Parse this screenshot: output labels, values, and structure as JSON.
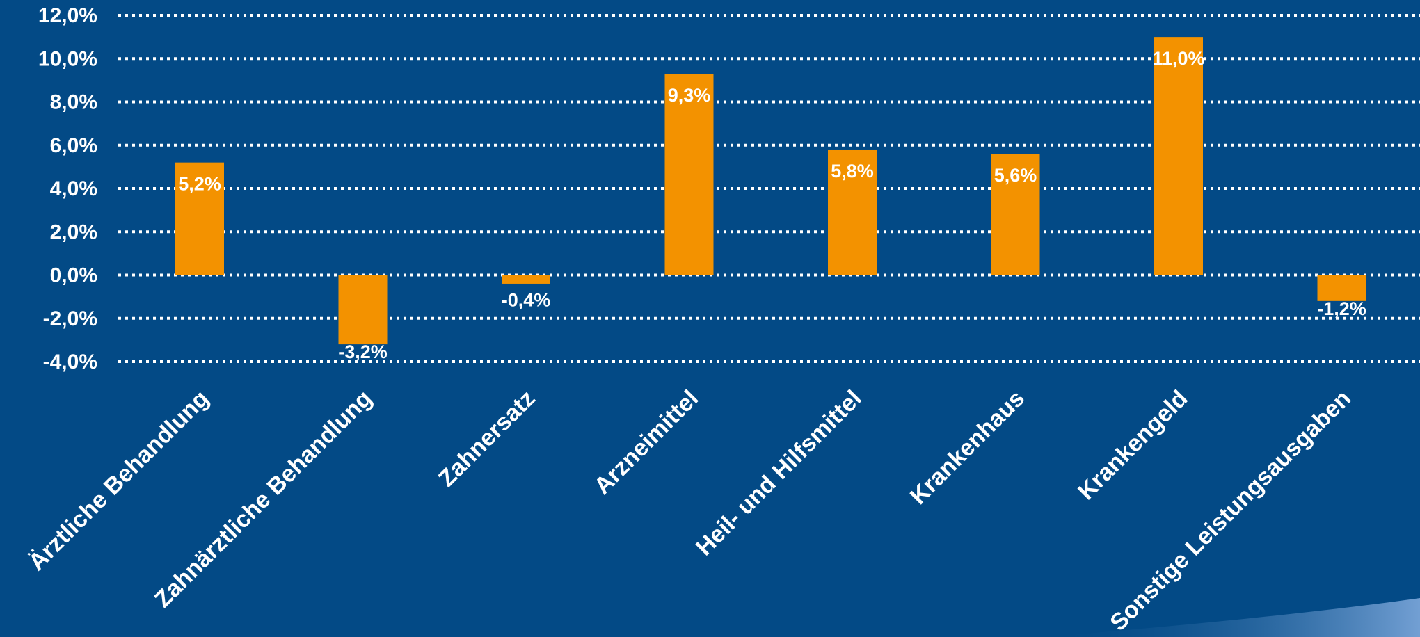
{
  "colors": {
    "background": "#034a86",
    "bar": "#f39200",
    "grid": "#ffffff",
    "text": "#ffffff",
    "swoosh": "#5f8fcf"
  },
  "chart_data": {
    "type": "bar",
    "title": "",
    "xlabel": "",
    "ylabel": "",
    "ylim": [
      -4,
      12
    ],
    "yticks": [
      12,
      10,
      8,
      6,
      4,
      2,
      0,
      -2,
      -4
    ],
    "ytick_labels": [
      "12,0%",
      "10,0%",
      "8,0%",
      "6,0%",
      "4,0%",
      "2,0%",
      "0,0%",
      "-2,0%",
      "-4,0%"
    ],
    "grid": true,
    "grid_style": "dotted",
    "legend": "none",
    "categories": [
      "Ärztliche Behandlung",
      "Zahnärztliche Behandlung",
      "Zahnersatz",
      "Arzneimittel",
      "Heil- und Hilfsmittel",
      "Krankenhaus",
      "Krankengeld",
      "Sonstige Leistungsausgaben"
    ],
    "values": [
      5.2,
      -3.2,
      -0.4,
      9.3,
      5.8,
      5.6,
      11.0,
      -1.2
    ],
    "data_labels": [
      "5,2%",
      "-3,2%",
      "-0,4%",
      "9,3%",
      "5,8%",
      "5,6%",
      "11,0%",
      "-1,2%"
    ]
  }
}
